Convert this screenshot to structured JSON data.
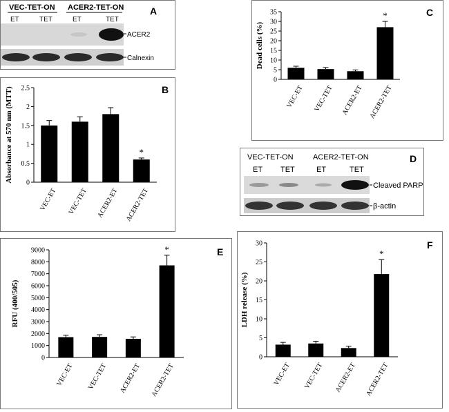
{
  "panels": {
    "A": {
      "letter": "A",
      "groups": [
        "VEC-TET-ON",
        "ACER2-TET-ON"
      ],
      "lanes": [
        "ET",
        "TET",
        "ET",
        "TET"
      ],
      "bands": [
        "ACER2",
        "Calnexin"
      ]
    },
    "D": {
      "letter": "D",
      "groups": [
        "VEC-TET-ON",
        "ACER2-TET-ON"
      ],
      "lanes": [
        "ET",
        "TET",
        "ET",
        "TET"
      ],
      "bands": [
        "Cleaved PARP",
        "β-actin"
      ]
    }
  },
  "chart_data": [
    {
      "id": "B",
      "letter": "B",
      "type": "bar",
      "categories": [
        "VEC-ET",
        "VEC-TET",
        "ACER2-ET",
        "ACER2-TET"
      ],
      "values": [
        1.5,
        1.6,
        1.8,
        0.6
      ],
      "errors": [
        0.13,
        0.13,
        0.17,
        0.04
      ],
      "significance": [
        "",
        "",
        "",
        "*"
      ],
      "ylabel": "Absorbance at 570 nm (MTT)",
      "ylim": [
        0,
        2.5
      ],
      "yticks": [
        "0",
        "0.5",
        "1",
        "1.5",
        "2",
        "2.5"
      ],
      "yticks_values": [
        0,
        0.5,
        1,
        1.5,
        2,
        2.5
      ],
      "bar_color": "#000000"
    },
    {
      "id": "C",
      "letter": "C",
      "type": "bar",
      "categories": [
        "VEC-ET",
        "VEC-TET",
        "ACER2-ET",
        "ACER2-TET"
      ],
      "values": [
        6,
        5.3,
        4.2,
        27
      ],
      "errors": [
        0.8,
        0.8,
        0.7,
        3
      ],
      "significance": [
        "",
        "",
        "",
        "*"
      ],
      "ylabel": "Dead cells (%)",
      "ylim": [
        0,
        35
      ],
      "yticks": [
        "0",
        "5",
        "10",
        "15",
        "20",
        "25",
        "30",
        "35"
      ],
      "yticks_values": [
        0,
        5,
        10,
        15,
        20,
        25,
        30,
        35
      ],
      "bar_color": "#000000"
    },
    {
      "id": "E",
      "letter": "E",
      "type": "bar",
      "categories": [
        "VEC-ET",
        "VEC-TET",
        "ACER2-ET",
        "ACER2-TET"
      ],
      "values": [
        1700,
        1720,
        1560,
        7700
      ],
      "errors": [
        160,
        180,
        160,
        850
      ],
      "significance": [
        "",
        "",
        "",
        "*"
      ],
      "ylabel": "RFU (400/505)",
      "ylim": [
        0,
        9000
      ],
      "yticks": [
        "0",
        "1000",
        "2000",
        "3000",
        "4000",
        "5000",
        "6000",
        "7000",
        "8000",
        "9000"
      ],
      "yticks_values": [
        0,
        1000,
        2000,
        3000,
        4000,
        5000,
        6000,
        7000,
        8000,
        9000
      ],
      "bar_color": "#000000"
    },
    {
      "id": "F",
      "letter": "F",
      "type": "bar",
      "categories": [
        "VEC-ET",
        "VEC-TET",
        "ACER2-ET",
        "ACER2-TET"
      ],
      "values": [
        3.2,
        3.5,
        2.3,
        21.8
      ],
      "errors": [
        0.6,
        0.6,
        0.5,
        3.8
      ],
      "significance": [
        "",
        "",
        "",
        "*"
      ],
      "ylabel": "LDH release (%)",
      "ylim": [
        0,
        30
      ],
      "yticks": [
        "0",
        "5",
        "10",
        "15",
        "20",
        "25",
        "30"
      ],
      "yticks_values": [
        0,
        5,
        10,
        15,
        20,
        25,
        30
      ],
      "bar_color": "#000000"
    }
  ]
}
